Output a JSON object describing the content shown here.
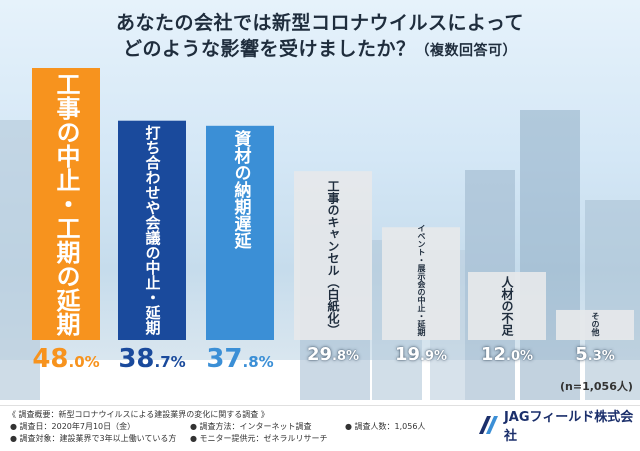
{
  "title": {
    "line1": "あなたの会社では新型コロナウイルスによって",
    "line2": "どのような影響を受けましたか？",
    "note": "（複数回答可）"
  },
  "sample_note": "(n=1,056人)",
  "footer": {
    "heading": "《 調査概要：新型コロナウイルスによる建設業界の変化に関する調査 》",
    "date": "● 調査日：2020年7月10日（金）",
    "method": "● 調査方法：インターネット調査",
    "count": "● 調査人数：1,056人",
    "target": "● 調査対象：建設業界で3年以上働いている方",
    "provider": "● モニター提供元：ゼネラルリサーチ",
    "company": "JAGフィールド株式会社"
  },
  "colors": {
    "orange": "#f7931e",
    "navy": "#1a4a9c",
    "blue": "#3b8fd6",
    "gray": "#e6e8ea",
    "value_gray": "#ffffff",
    "logo": "#1b2f6b"
  },
  "chart_data": {
    "type": "bar",
    "categories": [
      "工事の中止・工期の延期",
      "打ち合わせや会議の中止・延期",
      "資材の納期遅延",
      "工事のキャンセル（白紙化）",
      "イベント・展示会の中止・延期",
      "人材の不足",
      "その他"
    ],
    "values": [
      48.0,
      38.7,
      37.8,
      29.8,
      19.9,
      12.0,
      5.3
    ],
    "value_labels": [
      "48.0%",
      "38.7%",
      "37.8%",
      "29.8%",
      "19.9%",
      "12.0%",
      "5.3%"
    ],
    "unit": "%",
    "ylim": [
      0,
      50
    ]
  }
}
